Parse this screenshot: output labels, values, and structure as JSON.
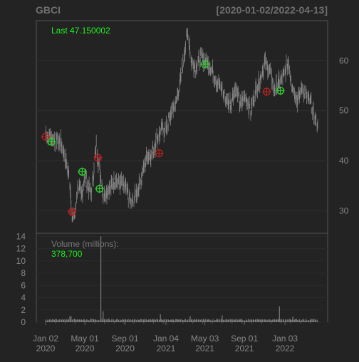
{
  "chart_data": [
    {
      "type": "line",
      "panel": "price",
      "title": "GBCI",
      "date_range": "[2020-01-02/2022-04-13]",
      "last_label": "Last 47.150002",
      "ylim": [
        25.5,
        68
      ],
      "y_ticks": [
        30,
        40,
        50,
        60
      ],
      "grid": true,
      "series": [
        {
          "values": [
            {
              "x": "2020-01-02",
              "y": 45.5
            },
            {
              "x": "2020-01-15",
              "y": 45.0
            },
            {
              "x": "2020-02-01",
              "y": 44.2
            },
            {
              "x": "2020-02-18",
              "y": 43.6
            },
            {
              "x": "2020-03-05",
              "y": 40.0
            },
            {
              "x": "2020-03-16",
              "y": 36.0
            },
            {
              "x": "2020-03-23",
              "y": 28.5
            },
            {
              "x": "2020-04-01",
              "y": 29.5
            },
            {
              "x": "2020-04-10",
              "y": 35.5
            },
            {
              "x": "2020-04-20",
              "y": 32.5
            },
            {
              "x": "2020-05-01",
              "y": 37.0
            },
            {
              "x": "2020-05-10",
              "y": 35.0
            },
            {
              "x": "2020-05-22",
              "y": 33.5
            },
            {
              "x": "2020-06-05",
              "y": 43.0
            },
            {
              "x": "2020-06-15",
              "y": 38.5
            },
            {
              "x": "2020-06-26",
              "y": 33.5
            },
            {
              "x": "2020-07-15",
              "y": 34.0
            },
            {
              "x": "2020-08-01",
              "y": 36.5
            },
            {
              "x": "2020-08-20",
              "y": 35.5
            },
            {
              "x": "2020-09-05",
              "y": 34.5
            },
            {
              "x": "2020-09-20",
              "y": 31.0
            },
            {
              "x": "2020-10-05",
              "y": 33.5
            },
            {
              "x": "2020-10-20",
              "y": 36.5
            },
            {
              "x": "2020-11-09",
              "y": 41.5
            },
            {
              "x": "2020-11-20",
              "y": 41.0
            },
            {
              "x": "2020-12-01",
              "y": 43.0
            },
            {
              "x": "2020-12-15",
              "y": 45.5
            },
            {
              "x": "2021-01-04",
              "y": 46.5
            },
            {
              "x": "2021-01-20",
              "y": 49.5
            },
            {
              "x": "2021-02-05",
              "y": 52.0
            },
            {
              "x": "2021-02-20",
              "y": 57.0
            },
            {
              "x": "2021-03-05",
              "y": 63.5
            },
            {
              "x": "2021-03-12",
              "y": 66.0
            },
            {
              "x": "2021-03-22",
              "y": 60.0
            },
            {
              "x": "2021-04-05",
              "y": 58.5
            },
            {
              "x": "2021-04-20",
              "y": 61.0
            },
            {
              "x": "2021-05-05",
              "y": 60.0
            },
            {
              "x": "2021-05-20",
              "y": 59.0
            },
            {
              "x": "2021-06-05",
              "y": 56.0
            },
            {
              "x": "2021-06-20",
              "y": 55.0
            },
            {
              "x": "2021-07-05",
              "y": 52.5
            },
            {
              "x": "2021-07-20",
              "y": 51.5
            },
            {
              "x": "2021-08-05",
              "y": 54.5
            },
            {
              "x": "2021-08-20",
              "y": 51.0
            },
            {
              "x": "2021-09-05",
              "y": 53.0
            },
            {
              "x": "2021-09-20",
              "y": 50.0
            },
            {
              "x": "2021-10-05",
              "y": 54.0
            },
            {
              "x": "2021-10-20",
              "y": 56.5
            },
            {
              "x": "2021-11-01",
              "y": 59.5
            },
            {
              "x": "2021-11-15",
              "y": 58.5
            },
            {
              "x": "2021-11-30",
              "y": 54.5
            },
            {
              "x": "2021-12-15",
              "y": 55.5
            },
            {
              "x": "2022-01-03",
              "y": 57.5
            },
            {
              "x": "2022-01-13",
              "y": 60.0
            },
            {
              "x": "2022-01-25",
              "y": 55.0
            },
            {
              "x": "2022-02-10",
              "y": 52.0
            },
            {
              "x": "2022-02-25",
              "y": 54.5
            },
            {
              "x": "2022-03-10",
              "y": 53.0
            },
            {
              "x": "2022-03-25",
              "y": 51.0
            },
            {
              "x": "2022-04-05",
              "y": 48.5
            },
            {
              "x": "2022-04-13",
              "y": 47.15
            }
          ]
        }
      ],
      "markers": [
        {
          "x": "2020-01-02",
          "y": 44.8,
          "kind": "sell",
          "color": "#b22222"
        },
        {
          "x": "2020-01-20",
          "y": 43.8,
          "kind": "buy",
          "color": "#32cd32"
        },
        {
          "x": "2020-03-23",
          "y": 29.8,
          "kind": "sell",
          "color": "#b22222"
        },
        {
          "x": "2020-04-23",
          "y": 37.8,
          "kind": "buy",
          "color": "#32cd32"
        },
        {
          "x": "2020-06-10",
          "y": 40.6,
          "kind": "sell",
          "color": "#b22222"
        },
        {
          "x": "2020-06-15",
          "y": 34.4,
          "kind": "buy",
          "color": "#32cd32"
        },
        {
          "x": "2020-12-14",
          "y": 41.5,
          "kind": "sell",
          "color": "#b22222"
        },
        {
          "x": "2021-05-03",
          "y": 59.3,
          "kind": "buy",
          "color": "#32cd32"
        },
        {
          "x": "2021-11-08",
          "y": 53.8,
          "kind": "sell",
          "color": "#b22222"
        },
        {
          "x": "2021-12-20",
          "y": 54.0,
          "kind": "buy",
          "color": "#32cd32"
        }
      ],
      "colors": {
        "line": "#858585",
        "last_label": "#22ee22"
      }
    },
    {
      "type": "bar",
      "panel": "volume",
      "label": "Volume (millions):",
      "last_value": "378,700",
      "ylim": [
        0,
        14.5
      ],
      "y_ticks": [
        0,
        2,
        4,
        6,
        8,
        10,
        12,
        14
      ],
      "x_ticks": [
        {
          "date": "2020-01-02",
          "line1": "Jan 02",
          "line2": "2020"
        },
        {
          "date": "2020-05-01",
          "line1": "May 01",
          "line2": "2020"
        },
        {
          "date": "2020-09-01",
          "line1": "Sep 01",
          "line2": "2020"
        },
        {
          "date": "2021-01-04",
          "line1": "Jan 04",
          "line2": "2021"
        },
        {
          "date": "2021-05-03",
          "line1": "May 03",
          "line2": "2021"
        },
        {
          "date": "2021-09-01",
          "line1": "Sep 01",
          "line2": "2021"
        },
        {
          "date": "2022-01-03",
          "line1": "Jan 03",
          "line2": "2022"
        }
      ],
      "spikes": [
        {
          "x": "2020-06-19",
          "y": 14.0
        },
        {
          "x": "2020-03-20",
          "y": 1.0
        },
        {
          "x": "2020-03-16",
          "y": 0.9
        },
        {
          "x": "2020-06-26",
          "y": 1.8
        },
        {
          "x": "2020-12-18",
          "y": 1.3
        },
        {
          "x": "2021-03-19",
          "y": 1.0
        },
        {
          "x": "2021-06-25",
          "y": 1.1
        },
        {
          "x": "2021-12-17",
          "y": 2.6
        },
        {
          "x": "2022-01-27",
          "y": 0.9
        }
      ],
      "baseline_volume": 0.4,
      "colors": {
        "bars": "#7c7c7c",
        "value": "#22ee22"
      }
    }
  ]
}
